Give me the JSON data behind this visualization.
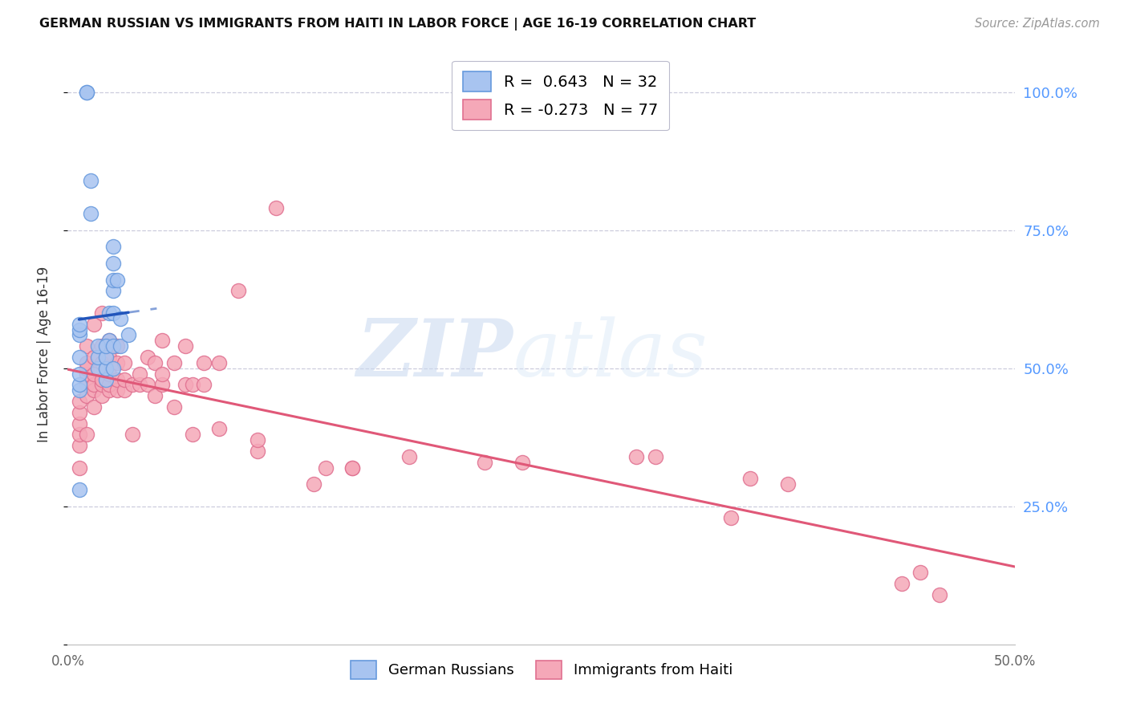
{
  "title": "GERMAN RUSSIAN VS IMMIGRANTS FROM HAITI IN LABOR FORCE | AGE 16-19 CORRELATION CHART",
  "source": "Source: ZipAtlas.com",
  "ylabel": "In Labor Force | Age 16-19",
  "right_yticks": [
    "100.0%",
    "75.0%",
    "50.0%",
    "25.0%"
  ],
  "right_ytick_vals": [
    1.0,
    0.75,
    0.5,
    0.25
  ],
  "xlim": [
    0.0,
    0.5
  ],
  "ylim": [
    0.0,
    1.05
  ],
  "watermark_zip": "ZIP",
  "watermark_atlas": "atlas",
  "blue_R": "0.643",
  "blue_N": "32",
  "pink_R": "-0.273",
  "pink_N": "77",
  "blue_color": "#A8C4F0",
  "blue_edge": "#6699DD",
  "pink_color": "#F5A8B8",
  "pink_edge": "#E07090",
  "trendline_blue": "#2255BB",
  "trendline_pink": "#E05878",
  "grid_color": "#CCCCDD",
  "grid_style": "--",
  "blue_x": [
    0.022,
    0.022,
    0.024,
    0.024,
    0.024,
    0.024,
    0.024,
    0.026,
    0.012,
    0.012,
    0.016,
    0.016,
    0.016,
    0.02,
    0.02,
    0.02,
    0.02,
    0.024,
    0.024,
    0.028,
    0.028,
    0.032,
    0.01,
    0.01,
    0.006,
    0.006,
    0.006,
    0.006,
    0.006,
    0.006,
    0.006,
    0.006
  ],
  "blue_y": [
    0.55,
    0.6,
    0.6,
    0.64,
    0.66,
    0.69,
    0.72,
    0.66,
    0.78,
    0.84,
    0.5,
    0.52,
    0.54,
    0.48,
    0.5,
    0.52,
    0.54,
    0.5,
    0.54,
    0.54,
    0.59,
    0.56,
    1.0,
    1.0,
    0.46,
    0.47,
    0.49,
    0.52,
    0.56,
    0.57,
    0.58,
    0.28
  ],
  "pink_x": [
    0.006,
    0.006,
    0.006,
    0.006,
    0.006,
    0.006,
    0.01,
    0.01,
    0.01,
    0.01,
    0.01,
    0.01,
    0.01,
    0.014,
    0.014,
    0.014,
    0.014,
    0.014,
    0.014,
    0.018,
    0.018,
    0.018,
    0.018,
    0.018,
    0.018,
    0.022,
    0.022,
    0.022,
    0.022,
    0.022,
    0.026,
    0.026,
    0.026,
    0.026,
    0.03,
    0.03,
    0.03,
    0.034,
    0.034,
    0.038,
    0.038,
    0.042,
    0.042,
    0.046,
    0.046,
    0.05,
    0.05,
    0.05,
    0.056,
    0.056,
    0.062,
    0.062,
    0.066,
    0.066,
    0.072,
    0.072,
    0.08,
    0.08,
    0.09,
    0.1,
    0.1,
    0.11,
    0.13,
    0.136,
    0.15,
    0.15,
    0.18,
    0.22,
    0.24,
    0.3,
    0.31,
    0.35,
    0.36,
    0.38,
    0.44,
    0.45,
    0.46
  ],
  "pink_y": [
    0.36,
    0.38,
    0.4,
    0.42,
    0.44,
    0.32,
    0.45,
    0.47,
    0.49,
    0.5,
    0.51,
    0.54,
    0.38,
    0.43,
    0.46,
    0.47,
    0.49,
    0.52,
    0.58,
    0.45,
    0.47,
    0.48,
    0.51,
    0.54,
    0.6,
    0.46,
    0.47,
    0.49,
    0.52,
    0.55,
    0.46,
    0.48,
    0.51,
    0.54,
    0.46,
    0.48,
    0.51,
    0.38,
    0.47,
    0.47,
    0.49,
    0.47,
    0.52,
    0.45,
    0.51,
    0.47,
    0.49,
    0.55,
    0.43,
    0.51,
    0.47,
    0.54,
    0.38,
    0.47,
    0.47,
    0.51,
    0.39,
    0.51,
    0.64,
    0.35,
    0.37,
    0.79,
    0.29,
    0.32,
    0.32,
    0.32,
    0.34,
    0.33,
    0.33,
    0.34,
    0.34,
    0.23,
    0.3,
    0.29,
    0.11,
    0.13,
    0.09
  ]
}
